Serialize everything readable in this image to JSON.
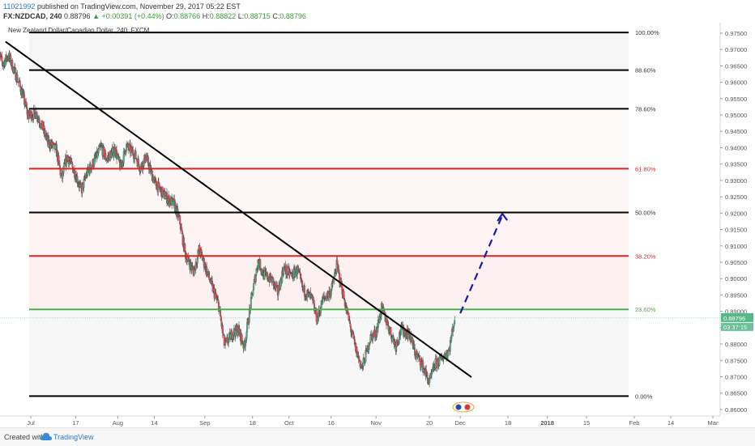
{
  "header": {
    "user": "11021992",
    "published": "published on TradingView.com, November 29, 2017 05:22 EST",
    "symbol": "FX:NZDCAD, 240",
    "last": "0.88796",
    "change": "+0.00391 (+0.44%)",
    "open_label": "O:",
    "open": "0.88766",
    "high_label": "H:",
    "high": "0.88822",
    "low_label": "L:",
    "low": "0.88715",
    "close_label": "C:",
    "close": "0.88796"
  },
  "footer": {
    "created_with": "Created with",
    "brand": "TradingView"
  },
  "chart_data": {
    "type": "candlestick",
    "title": "New Zealand Dollar/Canadian Dollar, 240, FXCM",
    "ylim": [
      0.858,
      0.9782
    ],
    "y_ticks": [
      "0.97500",
      "0.97000",
      "0.96500",
      "0.96000",
      "0.95500",
      "0.95000",
      "0.94500",
      "0.94000",
      "0.93500",
      "0.93000",
      "0.92500",
      "0.92000",
      "0.91500",
      "0.91000",
      "0.90500",
      "0.90000",
      "0.89500",
      "0.89000",
      "0.88500",
      "0.88000",
      "0.87500",
      "0.87000",
      "0.86500",
      "0.86000"
    ],
    "x_ticks": [
      {
        "label": "Jul",
        "date": "2017-07-01"
      },
      {
        "label": "17",
        "date": "2017-07-17"
      },
      {
        "label": "Aug",
        "date": "2017-08-01"
      },
      {
        "label": "14",
        "date": "2017-08-14"
      },
      {
        "label": "Sep",
        "date": "2017-09-01"
      },
      {
        "label": "18",
        "date": "2017-09-18"
      },
      {
        "label": "Oct",
        "date": "2017-10-01"
      },
      {
        "label": "16",
        "date": "2017-10-16"
      },
      {
        "label": "Nov",
        "date": "2017-11-01"
      },
      {
        "label": "20",
        "date": "2017-11-20"
      },
      {
        "label": "Dec",
        "date": "2017-12-01"
      },
      {
        "label": "18",
        "date": "2017-12-18"
      },
      {
        "label": "2018",
        "date": "2018-01-01"
      },
      {
        "label": "15",
        "date": "2018-01-15"
      },
      {
        "label": "Feb",
        "date": "2018-02-01"
      },
      {
        "label": "14",
        "date": "2018-02-14"
      },
      {
        "label": "Mar",
        "date": "2018-03-01"
      }
    ],
    "fib_levels": [
      {
        "label": "100.00%",
        "value": 0.9752,
        "color": "#000000"
      },
      {
        "label": "88.60%",
        "value": 0.9637,
        "color": "#000000"
      },
      {
        "label": "78.60%",
        "value": 0.9519,
        "color": "#000000"
      },
      {
        "label": "61.80%",
        "value": 0.9336,
        "color": "#e02222"
      },
      {
        "label": "50.00%",
        "value": 0.9202,
        "color": "#000000"
      },
      {
        "label": "38.20%",
        "value": 0.9069,
        "color": "#e02222"
      },
      {
        "label": "23.60%",
        "value": 0.8906,
        "color": "#4caf50"
      },
      {
        "label": "0.00%",
        "value": 0.8641,
        "color": "#000000"
      }
    ],
    "trendline": {
      "from": {
        "date": "2017-06-22",
        "price": 0.9724
      },
      "to": {
        "date": "2017-12-05",
        "price": 0.8699
      }
    },
    "projection": {
      "from": {
        "date": "2017-12-01",
        "price": 0.8894
      },
      "to": {
        "date": "2017-12-16",
        "price": 0.9198
      }
    },
    "last_price": {
      "value": "0.88796",
      "price": 0.88796,
      "countdown": "03:37:15"
    },
    "price_path": [
      [
        "2017-06-19",
        0.97
      ],
      [
        "2017-06-21",
        0.9655
      ],
      [
        "2017-06-23",
        0.9682
      ],
      [
        "2017-06-26",
        0.9615
      ],
      [
        "2017-06-28",
        0.9565
      ],
      [
        "2017-06-30",
        0.9498
      ],
      [
        "2017-07-03",
        0.9505
      ],
      [
        "2017-07-05",
        0.9465
      ],
      [
        "2017-07-07",
        0.9418
      ],
      [
        "2017-07-10",
        0.9395
      ],
      [
        "2017-07-12",
        0.9305
      ],
      [
        "2017-07-14",
        0.9375
      ],
      [
        "2017-07-17",
        0.9318
      ],
      [
        "2017-07-19",
        0.9268
      ],
      [
        "2017-07-21",
        0.9322
      ],
      [
        "2017-07-24",
        0.9365
      ],
      [
        "2017-07-26",
        0.9402
      ],
      [
        "2017-07-28",
        0.9365
      ],
      [
        "2017-07-31",
        0.9395
      ],
      [
        "2017-08-02",
        0.9338
      ],
      [
        "2017-08-04",
        0.9405
      ],
      [
        "2017-08-07",
        0.938
      ],
      [
        "2017-08-09",
        0.9338
      ],
      [
        "2017-08-11",
        0.9372
      ],
      [
        "2017-08-14",
        0.9296
      ],
      [
        "2017-08-16",
        0.9272
      ],
      [
        "2017-08-18",
        0.925
      ],
      [
        "2017-08-21",
        0.9228
      ],
      [
        "2017-08-23",
        0.9178
      ],
      [
        "2017-08-25",
        0.9075
      ],
      [
        "2017-08-28",
        0.902
      ],
      [
        "2017-08-30",
        0.909
      ],
      [
        "2017-09-01",
        0.904
      ],
      [
        "2017-09-04",
        0.8965
      ],
      [
        "2017-09-06",
        0.8915
      ],
      [
        "2017-09-08",
        0.8795
      ],
      [
        "2017-09-11",
        0.8835
      ],
      [
        "2017-09-13",
        0.8845
      ],
      [
        "2017-09-15",
        0.879
      ],
      [
        "2017-09-18",
        0.8958
      ],
      [
        "2017-09-20",
        0.9055
      ],
      [
        "2017-09-22",
        0.9012
      ],
      [
        "2017-09-25",
        0.8995
      ],
      [
        "2017-09-27",
        0.8955
      ],
      [
        "2017-09-29",
        0.903
      ],
      [
        "2017-10-02",
        0.901
      ],
      [
        "2017-10-04",
        0.9025
      ],
      [
        "2017-10-06",
        0.8965
      ],
      [
        "2017-10-09",
        0.894
      ],
      [
        "2017-10-11",
        0.8875
      ],
      [
        "2017-10-13",
        0.8935
      ],
      [
        "2017-10-16",
        0.8962
      ],
      [
        "2017-10-18",
        0.904
      ],
      [
        "2017-10-20",
        0.8962
      ],
      [
        "2017-10-23",
        0.8845
      ],
      [
        "2017-10-25",
        0.8778
      ],
      [
        "2017-10-27",
        0.8725
      ],
      [
        "2017-10-30",
        0.882
      ],
      [
        "2017-11-01",
        0.8835
      ],
      [
        "2017-11-03",
        0.891
      ],
      [
        "2017-11-06",
        0.884
      ],
      [
        "2017-11-08",
        0.8795
      ],
      [
        "2017-11-10",
        0.8845
      ],
      [
        "2017-11-13",
        0.8828
      ],
      [
        "2017-11-15",
        0.877
      ],
      [
        "2017-11-17",
        0.8745
      ],
      [
        "2017-11-20",
        0.8682
      ],
      [
        "2017-11-22",
        0.8738
      ],
      [
        "2017-11-24",
        0.8752
      ],
      [
        "2017-11-27",
        0.8782
      ],
      [
        "2017-11-29",
        0.888
      ]
    ]
  }
}
